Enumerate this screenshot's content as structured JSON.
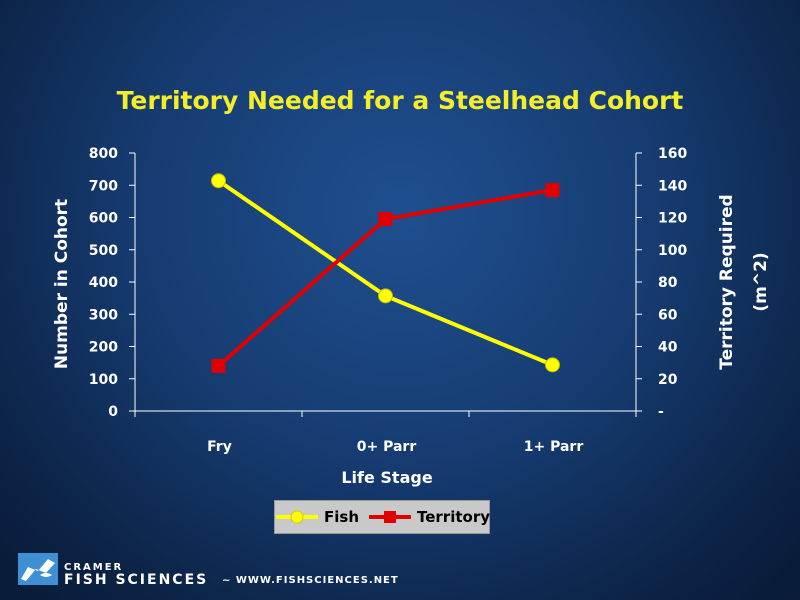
{
  "chart_data": {
    "type": "line",
    "title": "Territory Needed for a Steelhead Cohort",
    "xlabel": "Life Stage",
    "ylabel": "Number in Cohort",
    "y2label_line1": "Territory Required",
    "y2label_line2": "(m^2)",
    "categories": [
      "Fry",
      "0+ Parr",
      "1+ Parr"
    ],
    "ylim": [
      0,
      800
    ],
    "y2lim": [
      0,
      160
    ],
    "yticks": [
      "0",
      "100",
      "200",
      "300",
      "400",
      "500",
      "600",
      "700",
      "800"
    ],
    "y2ticks": [
      "-",
      "20",
      "40",
      "60",
      "80",
      "100",
      "120",
      "140",
      "160"
    ],
    "grid": false,
    "legend_position": "bottom",
    "series": [
      {
        "name": "Fish",
        "axis": "left",
        "values": [
          714,
          357,
          143
        ],
        "color": "#ffff00",
        "marker": "circle"
      },
      {
        "name": "Territory",
        "axis": "right",
        "values": [
          28,
          119,
          137
        ],
        "color": "#e00000",
        "marker": "square"
      }
    ]
  },
  "footer": {
    "company_top": "CRAMER",
    "company_name": "FISH SCIENCES",
    "separator_url": "~  WWW.FISHSCIENCES.NET"
  },
  "colors": {
    "title": "#f4ee2a",
    "plot_line": "#ffffff",
    "logo": "#3f8fd4"
  },
  "icons": {
    "logo": "fish-logo-icon"
  }
}
